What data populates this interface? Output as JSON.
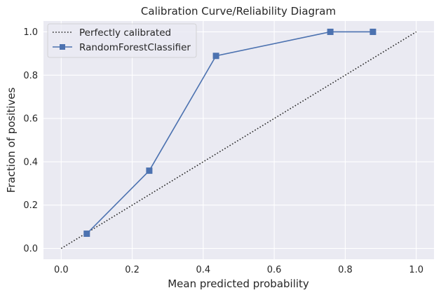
{
  "chart_data": {
    "type": "line",
    "title": "Calibration Curve/Reliability Diagram",
    "xlabel": "Mean predicted probability",
    "ylabel": "Fraction of positives",
    "xlim": [
      -0.05,
      1.05
    ],
    "ylim": [
      -0.05,
      1.05
    ],
    "x_ticks": [
      "0.0",
      "0.2",
      "0.4",
      "0.6",
      "0.8",
      "1.0"
    ],
    "y_ticks": [
      "0.0",
      "0.2",
      "0.4",
      "0.6",
      "0.8",
      "1.0"
    ],
    "grid": true,
    "legend_position": "top-left",
    "background_color": "#eaeaf2",
    "series": [
      {
        "name": "Perfectly calibrated",
        "style": "dotted",
        "color": "#262626",
        "x": [
          0.0,
          1.0
        ],
        "y": [
          0.0,
          1.0
        ]
      },
      {
        "name": "RandomForestClassifier",
        "style": "solid",
        "marker": "square",
        "color": "#4c72b0",
        "x": [
          0.072,
          0.248,
          0.436,
          0.758,
          0.878
        ],
        "y": [
          0.068,
          0.359,
          0.889,
          1.0,
          1.0
        ]
      }
    ]
  }
}
